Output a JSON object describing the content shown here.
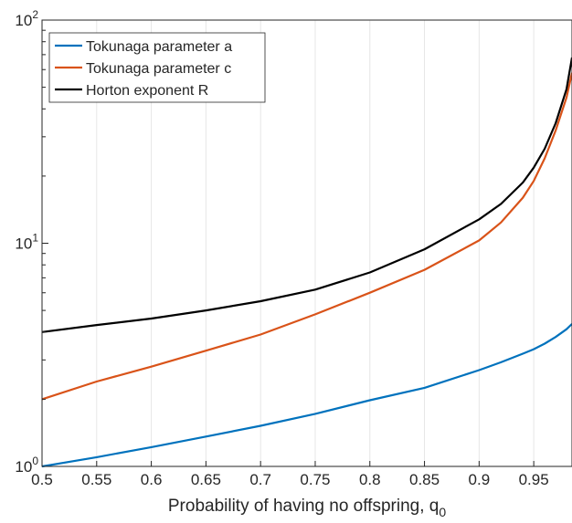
{
  "chart_data": {
    "type": "line",
    "title": "",
    "xlabel": "Probability of having no offspring, q",
    "xlabel_subscript": "0",
    "ylabel": "",
    "xlim": [
      0.5,
      0.985
    ],
    "ylim": [
      1,
      100
    ],
    "yscale": "log",
    "grid": "x-only",
    "legend_position": "top-left",
    "x_ticks": [
      "0.5",
      "0.55",
      "0.6",
      "0.65",
      "0.7",
      "0.75",
      "0.8",
      "0.85",
      "0.9",
      "0.95"
    ],
    "y_ticks": [
      {
        "base": "10",
        "exp": "0",
        "value": 1
      },
      {
        "base": "10",
        "exp": "1",
        "value": 10
      },
      {
        "base": "10",
        "exp": "2",
        "value": 100
      }
    ],
    "x": [
      0.5,
      0.55,
      0.6,
      0.65,
      0.7,
      0.75,
      0.8,
      0.85,
      0.9,
      0.92,
      0.94,
      0.95,
      0.96,
      0.97,
      0.98,
      0.985
    ],
    "series": [
      {
        "name": "Tokunaga parameter a",
        "color": "#0072BD",
        "values": [
          1.0,
          1.1,
          1.22,
          1.36,
          1.52,
          1.72,
          1.98,
          2.25,
          2.7,
          2.93,
          3.2,
          3.35,
          3.55,
          3.8,
          4.12,
          4.35
        ]
      },
      {
        "name": "Tokunaga parameter c",
        "color": "#D95319",
        "values": [
          2.0,
          2.4,
          2.8,
          3.3,
          3.9,
          4.8,
          6.0,
          7.6,
          10.3,
          12.4,
          16.0,
          19.0,
          24.0,
          32.0,
          45.0,
          58.0
        ]
      },
      {
        "name": "Horton exponent R",
        "color": "#000000",
        "values": [
          4.0,
          4.3,
          4.6,
          5.0,
          5.5,
          6.2,
          7.4,
          9.4,
          12.8,
          15.0,
          18.7,
          21.8,
          26.5,
          34.5,
          49.0,
          68.0
        ]
      }
    ]
  }
}
